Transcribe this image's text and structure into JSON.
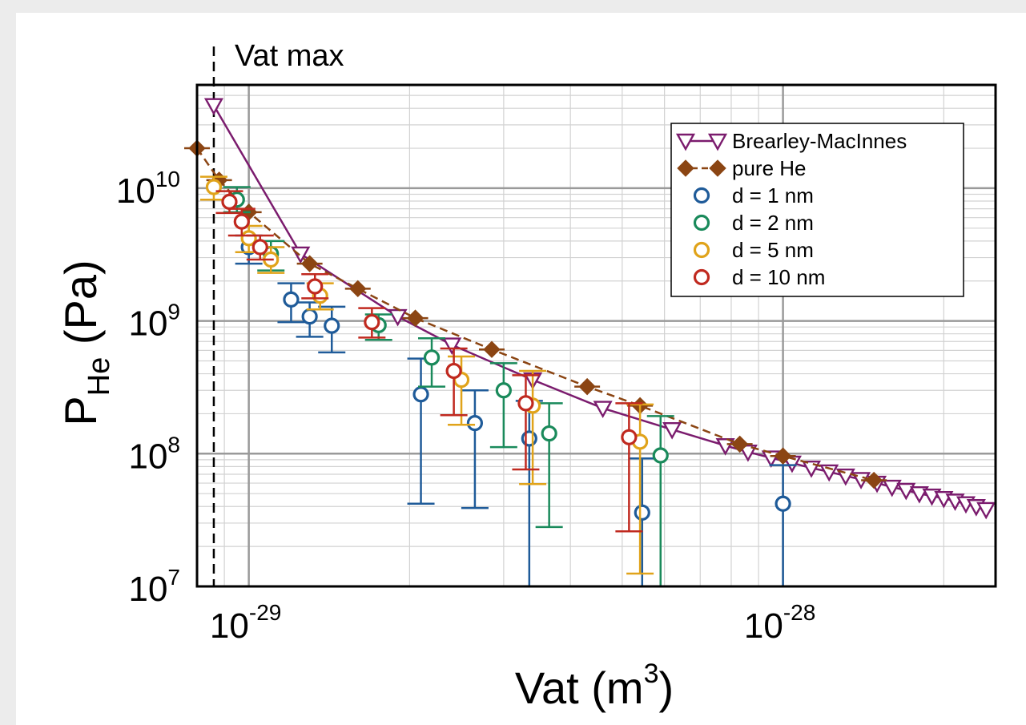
{
  "chart_data": {
    "type": "scatter",
    "xlabel": "Vat (m³)",
    "ylabel": "P_He (Pa)",
    "x_scale": "log",
    "y_scale": "log",
    "xlim": [
      8e-30,
      2.5e-28
    ],
    "ylim": [
      10000000.0,
      60000000000.0
    ],
    "x_ticks": [
      {
        "value": 1e-29,
        "base": "10",
        "exp": "-29"
      },
      {
        "value": 1e-28,
        "base": "10",
        "exp": "-28"
      }
    ],
    "y_ticks": [
      {
        "value": 10000000.0,
        "base": "10",
        "exp": "7"
      },
      {
        "value": 100000000.0,
        "base": "10",
        "exp": "8"
      },
      {
        "value": 1000000000.0,
        "base": "10",
        "exp": "9"
      },
      {
        "value": 10000000000.0,
        "base": "10",
        "exp": "10"
      }
    ],
    "grid": true,
    "legend_position": "top-right",
    "annotation": {
      "text": "Vat max",
      "x": 8.6e-30
    },
    "series": [
      {
        "name": "Brearley-MacInnes",
        "marker": "triangle-down-open",
        "line": true,
        "color": "#7b1c6e",
        "x": [
          8.6e-30,
          1.25e-29,
          1.9e-29,
          2.4e-29,
          3.4e-29,
          4.6e-29,
          6.2e-29,
          7.8e-29,
          8.6e-29,
          9.5e-29,
          1.04e-28,
          1.13e-28,
          1.22e-28,
          1.31e-28,
          1.4e-28,
          1.5e-28,
          1.6e-28,
          1.7e-28,
          1.8e-28,
          1.9e-28,
          2e-28,
          2.1e-28,
          2.2e-28,
          2.3e-28,
          2.4e-28
        ],
        "y": [
          42000000000.0,
          3200000000.0,
          1080000000.0,
          660000000.0,
          360000000.0,
          220000000.0,
          152000000.0,
          115000000.0,
          103000000.0,
          93000000.0,
          85000000.0,
          78000000.0,
          73000000.0,
          68000000.0,
          64000000.0,
          60000000.0,
          56000000.0,
          53000000.0,
          50000000.0,
          48000000.0,
          46000000.0,
          44000000.0,
          42000000.0,
          40000000.0,
          38000000.0
        ]
      },
      {
        "name": "pure He",
        "marker": "diamond-filled",
        "line": true,
        "line_style": "dashed",
        "color": "#8b4513",
        "x": [
          8e-30,
          8.8e-30,
          1e-29,
          1.3e-29,
          1.6e-29,
          2.05e-29,
          2.85e-29,
          4.3e-29,
          5.4e-29,
          8.3e-29,
          1e-28,
          1.48e-28
        ],
        "y": [
          20000000000.0,
          11500000000.0,
          6600000000.0,
          2700000000.0,
          1750000000.0,
          1050000000.0,
          610000000.0,
          320000000.0,
          230000000.0,
          118000000.0,
          96000000.0,
          63000000.0
        ]
      },
      {
        "name": "d = 1 nm",
        "marker": "circle-open",
        "color": "#1f5b99",
        "x": [
          1e-29,
          1.2e-29,
          1.3e-29,
          1.43e-29,
          2.1e-29,
          2.65e-29,
          3.35e-29,
          5.45e-29,
          1e-28
        ],
        "y": [
          3600000000.0,
          1450000000.0,
          1080000000.0,
          920000000.0,
          280000000.0,
          170000000.0,
          130000000.0,
          36000000.0,
          42000000.0
        ],
        "y_err_low": [
          2700000000.0,
          980000000.0,
          760000000.0,
          580000000.0,
          42000000.0,
          39000000.0,
          10000000.0,
          10000000.0,
          10000000.0
        ],
        "y_err_high": [
          4400000000.0,
          1920000000.0,
          1380000000.0,
          1280000000.0,
          520000000.0,
          300000000.0,
          250000000.0,
          92000000.0,
          82000000.0
        ]
      },
      {
        "name": "d = 2 nm",
        "marker": "circle-open",
        "color": "#1a8a5b",
        "x": [
          9.5e-30,
          1.1e-29,
          1.75e-29,
          2.2e-29,
          3e-29,
          3.65e-29,
          5.9e-29
        ],
        "y": [
          8200000000.0,
          3200000000.0,
          930000000.0,
          530000000.0,
          300000000.0,
          142000000.0,
          97000000.0
        ],
        "y_err_low": [
          6600000000.0,
          2400000000.0,
          720000000.0,
          320000000.0,
          112000000.0,
          28000000.0,
          10000000.0
        ],
        "y_err_high": [
          10200000000.0,
          4000000000.0,
          1120000000.0,
          740000000.0,
          480000000.0,
          240000000.0,
          192000000.0
        ]
      },
      {
        "name": "d = 5 nm",
        "marker": "circle-open",
        "color": "#e0a31a",
        "x": [
          8.6e-30,
          1e-29,
          1.1e-29,
          1.36e-29,
          2.5e-29,
          3.4e-29,
          5.4e-29
        ],
        "y": [
          10200000000.0,
          4200000000.0,
          2900000000.0,
          1550000000.0,
          360000000.0,
          230000000.0,
          123000000.0
        ],
        "y_err_low": [
          8200000000.0,
          3300000000.0,
          2300000000.0,
          1220000000.0,
          165000000.0,
          59000000.0,
          12500000.0
        ],
        "y_err_high": [
          12200000000.0,
          5200000000.0,
          3600000000.0,
          1920000000.0,
          540000000.0,
          420000000.0,
          235000000.0
        ]
      },
      {
        "name": "d = 10 nm",
        "marker": "circle-open",
        "color": "#c0291f",
        "x": [
          9.2e-30,
          9.7e-30,
          1.05e-29,
          1.33e-29,
          1.7e-29,
          2.42e-29,
          3.3e-29,
          5.15e-29
        ],
        "y": [
          7900000000.0,
          5600000000.0,
          3600000000.0,
          1820000000.0,
          980000000.0,
          420000000.0,
          240000000.0,
          133000000.0
        ],
        "y_err_low": [
          6500000000.0,
          4400000000.0,
          2900000000.0,
          1480000000.0,
          750000000.0,
          195000000.0,
          76000000.0,
          26000000.0
        ],
        "y_err_high": [
          9500000000.0,
          7000000000.0,
          4400000000.0,
          2250000000.0,
          1250000000.0,
          620000000.0,
          390000000.0,
          240000000.0
        ]
      }
    ]
  }
}
